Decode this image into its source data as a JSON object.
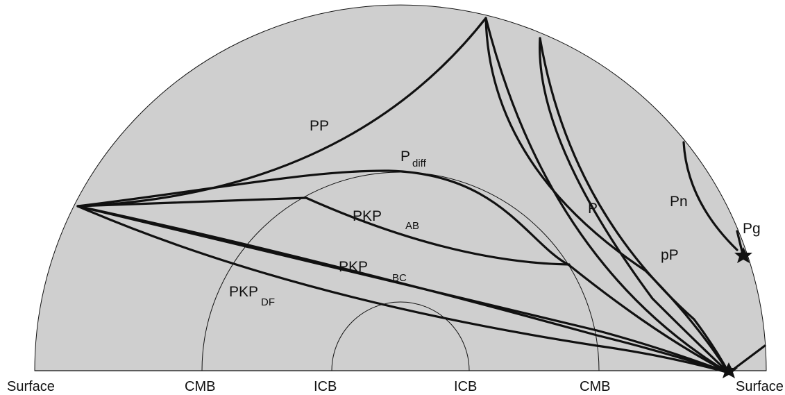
{
  "colors": {
    "mantle": "#cfcfcf",
    "outer_core": "#bdbdbd",
    "inner_core": "#a9a9a9",
    "ray": "#111111",
    "background": "#ffffff"
  },
  "axis_labels": {
    "surface_left": "Surface",
    "cmb_left": "CMB",
    "icb_left": "ICB",
    "icb_right": "ICB",
    "cmb_right": "CMB",
    "surface_right": "Surface"
  },
  "phases": {
    "pp": "PP",
    "pdiff_main": "P",
    "pdiff_sub": "diff",
    "pkp_ab_main": "PKP",
    "pkp_ab_sub": "AB",
    "pkp_bc_main": "PKP",
    "pkp_bc_sub": "BC",
    "pkp_df_main": "PKP",
    "pkp_df_sub": "DF",
    "p": "P",
    "pn": "Pn",
    "pg": "Pg",
    "pp_depth": "pP"
  },
  "markers": [
    "source-star",
    "surface-star"
  ]
}
